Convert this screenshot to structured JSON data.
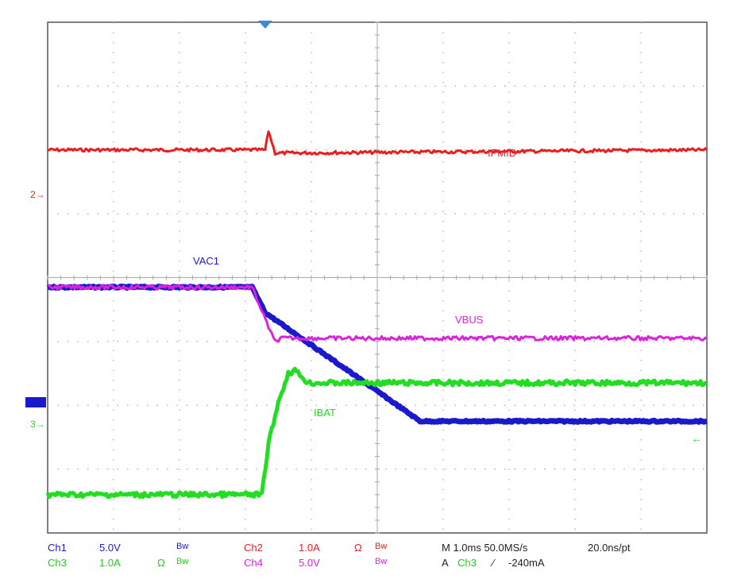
{
  "chart_data": {
    "type": "line",
    "title": "",
    "xlabel": "",
    "ylabel": "",
    "x_divisions": 10,
    "y_divisions": 8,
    "grid": true,
    "x_unit": "div",
    "y_unit": "div",
    "series": [
      {
        "name": "IPMID",
        "channel": "Ch2",
        "color": "#ee1c1c",
        "x": [
          0,
          3.3,
          3.35,
          3.45,
          10
        ],
        "y": [
          6.0,
          6.0,
          6.3,
          5.95,
          6.0
        ]
      },
      {
        "name": "VAC1",
        "channel": "Ch1",
        "color": "#1a1acc",
        "x": [
          0,
          3.1,
          3.3,
          5.65,
          10
        ],
        "y": [
          3.85,
          3.85,
          3.45,
          1.75,
          1.75
        ]
      },
      {
        "name": "VBUS",
        "channel": "Ch4",
        "color": "#dd22dd",
        "x": [
          0,
          3.1,
          3.4,
          3.45,
          3.55,
          10
        ],
        "y": [
          3.85,
          3.85,
          3.1,
          3.0,
          3.05,
          3.05
        ]
      },
      {
        "name": "IBAT",
        "channel": "Ch3",
        "color": "#22dd22",
        "x": [
          0,
          3.25,
          3.35,
          3.5,
          3.65,
          3.75,
          3.95,
          10
        ],
        "y": [
          0.6,
          0.6,
          1.4,
          2.05,
          2.5,
          2.55,
          2.35,
          2.35
        ]
      }
    ],
    "labels": {
      "ipmid": "IPMID",
      "vac1": "VAC1",
      "vbus": "VBUS",
      "ibat": "IBAT"
    },
    "markers": {
      "ch2": "2",
      "ch3": "3",
      "ch1": "1"
    },
    "trigger_position_div": 3.3
  },
  "footer": {
    "ch1": "Ch1",
    "ch1_scale": "5.0V",
    "ch1_bw": "Bw",
    "ch2": "Ch2",
    "ch2_scale": "1.0A",
    "ch2_ohm": "Ω",
    "ch2_bw": "Bw",
    "ch3": "Ch3",
    "ch3_scale": "1.0A",
    "ch3_ohm": "Ω",
    "ch3_bw": "Bw",
    "ch4": "Ch4",
    "ch4_scale": "5.0V",
    "ch4_bw": "Bw",
    "timebase": "M 1.0ms 50.0MS/s",
    "resolution": "20.0ns/pt",
    "trigger_prefix": "A",
    "trigger_ch": "Ch3",
    "trigger_slope": "∕",
    "trigger_level": "-240mA"
  },
  "colors": {
    "ch1": "#1a1acc",
    "ch2": "#ee1c1c",
    "ch3": "#22dd22",
    "ch4": "#dd22dd",
    "grid": "#a8a8a8",
    "frame": "#555555",
    "text_dark": "#222222"
  }
}
